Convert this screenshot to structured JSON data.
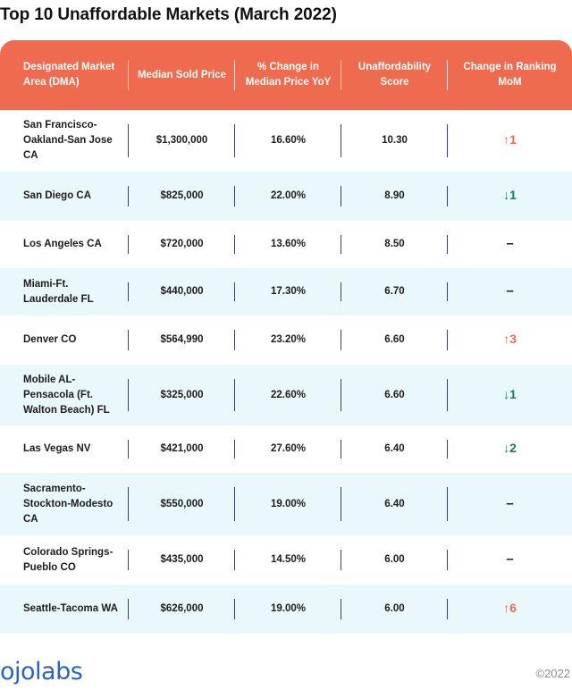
{
  "title": "Top 10 Unaffordable Markets (March 2022)",
  "chart_data": {
    "type": "table",
    "title": "Top 10 Unaffordable Markets (March 2022)",
    "columns": [
      "Designated Market Area (DMA)",
      "Median Sold Price",
      "% Change in Median Price YoY",
      "Unaffordability Score",
      "Change in Ranking MoM"
    ],
    "rows": [
      {
        "dma": "San Francisco-Oakland-San Jose CA",
        "price": "$1,300,000",
        "change_yoy": "16.60%",
        "score": "10.30",
        "rank_change": "1",
        "direction": "up"
      },
      {
        "dma": "San Diego CA",
        "price": "$825,000",
        "change_yoy": "22.00%",
        "score": "8.90",
        "rank_change": "1",
        "direction": "down"
      },
      {
        "dma": "Los Angeles CA",
        "price": "$720,000",
        "change_yoy": "13.60%",
        "score": "8.50",
        "rank_change": "",
        "direction": "none"
      },
      {
        "dma": "Miami-Ft. Lauderdale FL",
        "price": "$440,000",
        "change_yoy": "17.30%",
        "score": "6.70",
        "rank_change": "",
        "direction": "none"
      },
      {
        "dma": "Denver CO",
        "price": "$564,990",
        "change_yoy": "23.20%",
        "score": "6.60",
        "rank_change": "3",
        "direction": "up"
      },
      {
        "dma": "Mobile AL-Pensacola (Ft. Walton Beach) FL",
        "price": "$325,000",
        "change_yoy": "22.60%",
        "score": "6.60",
        "rank_change": "1",
        "direction": "down"
      },
      {
        "dma": "Las Vegas NV",
        "price": "$421,000",
        "change_yoy": "27.60%",
        "score": "6.40",
        "rank_change": "2",
        "direction": "down"
      },
      {
        "dma": "Sacramento-Stockton-Modesto CA",
        "price": "$550,000",
        "change_yoy": "19.00%",
        "score": "6.40",
        "rank_change": "",
        "direction": "none"
      },
      {
        "dma": "Colorado Springs-Pueblo CO",
        "price": "$435,000",
        "change_yoy": "14.50%",
        "score": "6.00",
        "rank_change": "",
        "direction": "none"
      },
      {
        "dma": "Seattle-Tacoma WA",
        "price": "$626,000",
        "change_yoy": "19.00%",
        "score": "6.00",
        "rank_change": "6",
        "direction": "up"
      }
    ]
  },
  "colors": {
    "header": "#ef6b4f",
    "shade": "#e9f8fb",
    "up": "#ef6b4f",
    "down": "#1a7b5c",
    "logo": "#2a62c9"
  },
  "footer": {
    "logo": "ojolabs",
    "copyright": "©2022"
  }
}
